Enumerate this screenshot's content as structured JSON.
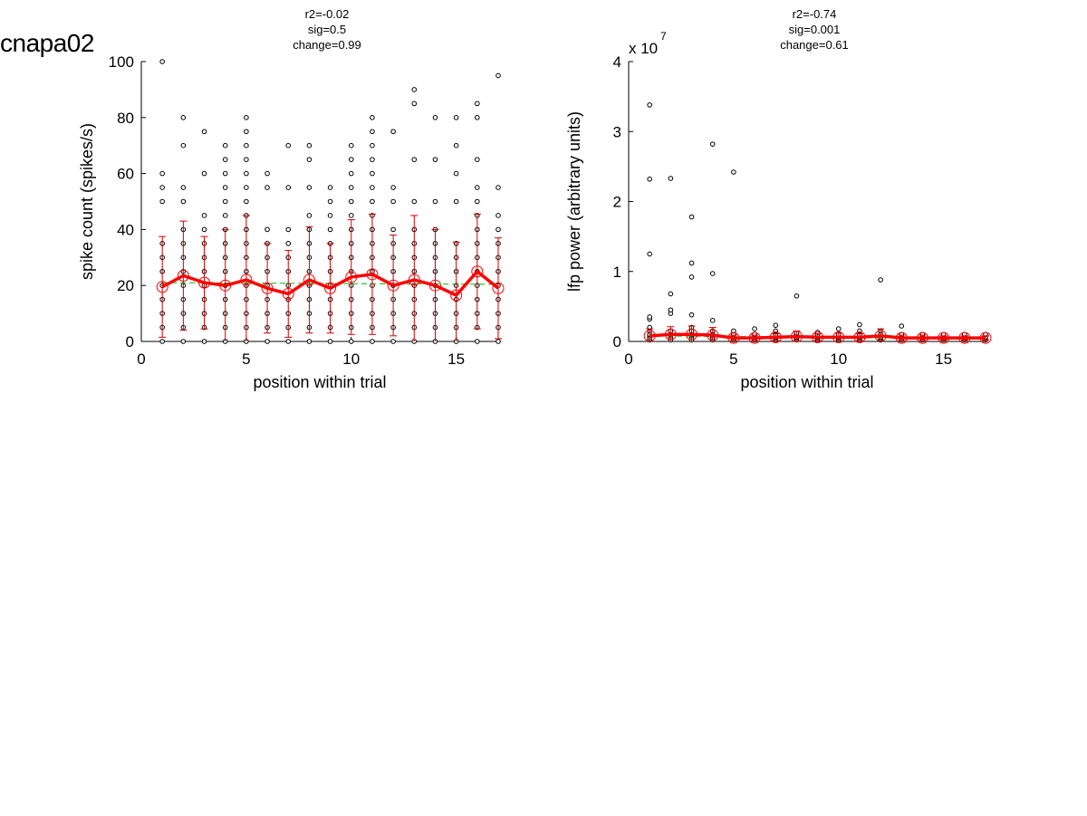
{
  "page_title": "cnapa02",
  "colors": {
    "mean_line": "#ff0000",
    "error_bar": "#cc0000",
    "fit_line": "#00bb00",
    "points": "#000000"
  },
  "chart_data": [
    {
      "type": "scatter",
      "stats": [
        "r2=-0.02",
        "sig=0.5",
        "change=0.99"
      ],
      "xlabel": "position within trial",
      "ylabel": "spike count (spikes/s)",
      "xlim": [
        0,
        17
      ],
      "ylim": [
        0,
        100
      ],
      "xticks": [
        0,
        5,
        10,
        15
      ],
      "yticks": [
        0,
        20,
        40,
        60,
        80,
        100
      ],
      "exponent_label": "",
      "x": [
        1,
        2,
        3,
        4,
        5,
        6,
        7,
        8,
        9,
        10,
        11,
        12,
        13,
        14,
        15,
        16,
        17
      ],
      "mean": [
        19.5,
        23.5,
        21,
        20,
        22,
        19,
        17,
        22,
        19,
        23,
        24,
        20,
        22,
        20,
        16.5,
        25,
        19
      ],
      "sd": [
        18,
        19.5,
        16.5,
        20,
        23,
        16,
        15.5,
        19,
        16,
        20.5,
        21.5,
        18,
        23,
        20,
        19,
        20.5,
        18
      ],
      "fit": [
        21,
        20.4
      ],
      "raw_points": [
        [
          0,
          5,
          10,
          15,
          20,
          25,
          30,
          35,
          50,
          55,
          60,
          100
        ],
        [
          0,
          5,
          10,
          15,
          20,
          25,
          30,
          35,
          40,
          50,
          55,
          70,
          80
        ],
        [
          0,
          5,
          10,
          15,
          20,
          25,
          30,
          35,
          40,
          45,
          60,
          75
        ],
        [
          0,
          5,
          10,
          15,
          20,
          25,
          30,
          35,
          40,
          45,
          50,
          55,
          60,
          65,
          70
        ],
        [
          0,
          5,
          10,
          15,
          20,
          25,
          30,
          35,
          40,
          45,
          50,
          55,
          60,
          65,
          70,
          75,
          80
        ],
        [
          0,
          5,
          10,
          15,
          20,
          25,
          30,
          35,
          40,
          55,
          60
        ],
        [
          0,
          5,
          10,
          15,
          20,
          25,
          30,
          35,
          40,
          55,
          70
        ],
        [
          0,
          5,
          10,
          15,
          20,
          25,
          30,
          35,
          40,
          45,
          55,
          65,
          70
        ],
        [
          0,
          5,
          10,
          15,
          20,
          25,
          30,
          35,
          40,
          45,
          50,
          55
        ],
        [
          0,
          5,
          10,
          15,
          20,
          25,
          30,
          35,
          40,
          45,
          50,
          55,
          60,
          65,
          70
        ],
        [
          0,
          5,
          10,
          15,
          20,
          25,
          30,
          35,
          40,
          45,
          50,
          55,
          60,
          65,
          70,
          75,
          80
        ],
        [
          0,
          5,
          10,
          15,
          20,
          25,
          30,
          35,
          40,
          50,
          55,
          75
        ],
        [
          0,
          5,
          10,
          15,
          20,
          25,
          30,
          35,
          40,
          50,
          65,
          85,
          90
        ],
        [
          0,
          5,
          10,
          15,
          20,
          25,
          30,
          35,
          40,
          50,
          65,
          80
        ],
        [
          0,
          5,
          10,
          15,
          20,
          25,
          30,
          35,
          50,
          60,
          70,
          80
        ],
        [
          0,
          5,
          10,
          15,
          20,
          25,
          30,
          35,
          40,
          45,
          50,
          55,
          65,
          80,
          85
        ],
        [
          0,
          5,
          10,
          15,
          20,
          25,
          30,
          35,
          40,
          45,
          55,
          95
        ]
      ]
    },
    {
      "type": "scatter",
      "stats": [
        "r2=-0.74",
        "sig=0.001",
        "change=0.61"
      ],
      "xlabel": "position within trial",
      "ylabel": "lfp power (arbitrary units)",
      "xlim": [
        0,
        17
      ],
      "ylim": [
        0,
        4
      ],
      "xticks": [
        0,
        5,
        10,
        15
      ],
      "yticks": [
        0,
        1,
        2,
        3,
        4
      ],
      "exponent_label": "x 10",
      "exponent_power": "7",
      "x": [
        1,
        2,
        3,
        4,
        5,
        6,
        7,
        8,
        9,
        10,
        11,
        12,
        13,
        14,
        15,
        16,
        17
      ],
      "mean": [
        0.08,
        0.1,
        0.1,
        0.09,
        0.05,
        0.05,
        0.06,
        0.07,
        0.06,
        0.06,
        0.06,
        0.08,
        0.05,
        0.05,
        0.05,
        0.05,
        0.05
      ],
      "sd": [
        0.1,
        0.11,
        0.12,
        0.11,
        0.04,
        0.04,
        0.05,
        0.08,
        0.05,
        0.06,
        0.05,
        0.1,
        0.04,
        0.04,
        0.03,
        0.03,
        0.03
      ],
      "fit": [
        0.08,
        0.04
      ],
      "raw_points": [
        [
          0.02,
          0.05,
          0.08,
          0.1,
          0.15,
          0.2,
          0.32,
          0.35,
          1.25,
          2.32,
          3.38
        ],
        [
          0.02,
          0.05,
          0.08,
          0.1,
          0.15,
          0.4,
          0.45,
          0.68,
          2.33
        ],
        [
          0.02,
          0.05,
          0.08,
          0.1,
          0.15,
          0.2,
          0.38,
          0.92,
          1.12,
          1.78
        ],
        [
          0.02,
          0.05,
          0.08,
          0.1,
          0.15,
          0.3,
          0.97,
          2.82
        ],
        [
          0.02,
          0.04,
          0.06,
          0.1,
          0.15,
          2.42
        ],
        [
          0.02,
          0.04,
          0.06,
          0.1,
          0.18
        ],
        [
          0.02,
          0.04,
          0.06,
          0.1,
          0.15,
          0.23
        ],
        [
          0.02,
          0.04,
          0.06,
          0.1,
          0.12,
          0.65
        ],
        [
          0.02,
          0.04,
          0.06,
          0.1,
          0.13
        ],
        [
          0.02,
          0.04,
          0.06,
          0.1,
          0.18
        ],
        [
          0.02,
          0.04,
          0.06,
          0.1,
          0.15,
          0.24
        ],
        [
          0.02,
          0.04,
          0.06,
          0.1,
          0.15,
          0.88
        ],
        [
          0.02,
          0.04,
          0.06,
          0.1,
          0.22
        ],
        [
          0.02,
          0.04,
          0.06,
          0.1
        ],
        [
          0.02,
          0.04,
          0.06,
          0.1
        ],
        [
          0.02,
          0.04,
          0.06,
          0.1
        ],
        [
          0.02,
          0.04,
          0.06,
          0.1
        ]
      ]
    }
  ]
}
